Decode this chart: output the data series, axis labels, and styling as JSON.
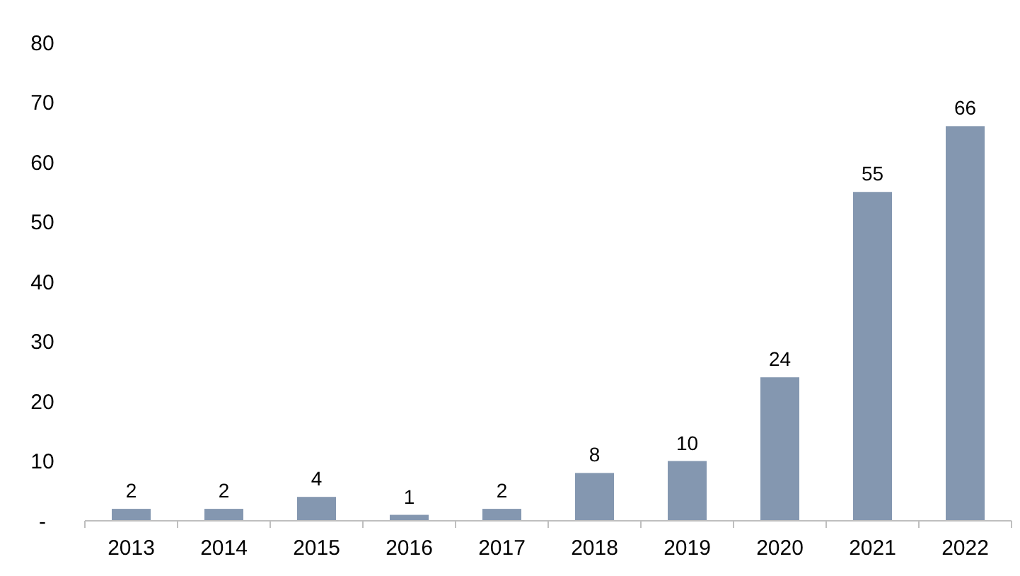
{
  "chart_data": {
    "type": "bar",
    "categories": [
      "2013",
      "2014",
      "2015",
      "2016",
      "2017",
      "2018",
      "2019",
      "2020",
      "2021",
      "2022"
    ],
    "values": [
      2,
      2,
      4,
      1,
      2,
      8,
      10,
      24,
      55,
      66
    ],
    "color": "#8497b0",
    "ylim": [
      0,
      80
    ],
    "yticks": [
      {
        "value": 0,
        "label": "-"
      },
      10,
      20,
      30,
      40,
      50,
      60,
      70,
      80
    ],
    "grid": false,
    "data_labels": true
  }
}
